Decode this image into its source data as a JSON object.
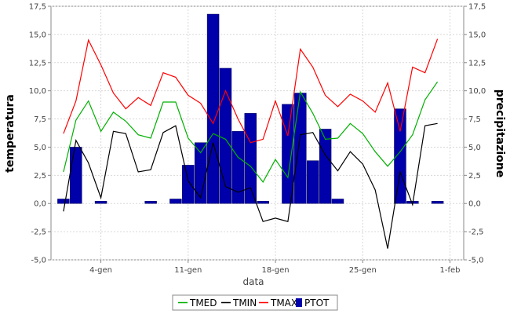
{
  "chart_data": {
    "type": "bar+line",
    "xlabel": "data",
    "ylabel_left": "temperatura",
    "ylabel_right": "precipitazione",
    "ylim": [
      -5.0,
      17.5
    ],
    "y_ticks": [
      "-5,0",
      "-2,5",
      "0,0",
      "2,5",
      "5,0",
      "7,5",
      "10,0",
      "12,5",
      "15,0",
      "17,5"
    ],
    "x_tick_labels": [
      "4-gen",
      "11-gen",
      "18-gen",
      "25-gen",
      "1-feb"
    ],
    "x_tick_days": [
      4,
      11,
      18,
      25,
      32
    ],
    "x_days": [
      1,
      2,
      3,
      4,
      5,
      6,
      7,
      8,
      9,
      10,
      11,
      12,
      13,
      14,
      15,
      16,
      17,
      18,
      19,
      20,
      21,
      22,
      23,
      24,
      25,
      26,
      27,
      28,
      29,
      30,
      31
    ],
    "legend": [
      "TMED",
      "TMIN",
      "TMAX",
      "PTOT"
    ],
    "colors": {
      "TMED": "#00b000",
      "TMIN": "#000000",
      "TMAX": "#ff0000",
      "PTOT": "#0000aa"
    },
    "series": [
      {
        "name": "TMED",
        "type": "line",
        "values": [
          2.8,
          7.4,
          9.1,
          6.4,
          8.1,
          7.3,
          6.1,
          5.8,
          9.0,
          9.0,
          5.8,
          4.5,
          6.2,
          5.7,
          4.1,
          3.3,
          1.9,
          3.9,
          2.3,
          9.9,
          8.0,
          5.7,
          5.8,
          7.1,
          6.2,
          4.6,
          3.3,
          4.6,
          6.1,
          9.2,
          10.8
        ]
      },
      {
        "name": "TMIN",
        "type": "line",
        "values": [
          -0.7,
          5.6,
          3.6,
          0.5,
          6.4,
          6.2,
          2.8,
          3.0,
          6.3,
          6.9,
          2.0,
          0.5,
          5.4,
          1.5,
          1.0,
          1.4,
          -1.6,
          -1.3,
          -1.6,
          6.1,
          6.3,
          4.3,
          2.9,
          4.6,
          3.5,
          1.2,
          -4.0,
          2.8,
          -0.1,
          6.9,
          7.1
        ]
      },
      {
        "name": "TMAX",
        "type": "line",
        "values": [
          6.2,
          9.1,
          14.5,
          12.3,
          9.8,
          8.4,
          9.4,
          8.7,
          11.6,
          11.2,
          9.6,
          8.9,
          7.1,
          10.0,
          7.5,
          5.4,
          5.7,
          9.1,
          6.0,
          13.7,
          12.1,
          9.6,
          8.6,
          9.7,
          9.1,
          8.1,
          10.7,
          6.4,
          12.1,
          11.6,
          14.6
        ]
      },
      {
        "name": "PTOT",
        "type": "bar",
        "values": [
          0.4,
          5.0,
          0.0,
          0.2,
          0.0,
          0.0,
          0.0,
          0.2,
          0.0,
          0.4,
          3.4,
          5.4,
          16.8,
          12.0,
          6.4,
          8.0,
          0.2,
          0.0,
          8.8,
          9.8,
          3.8,
          6.6,
          0.4,
          0.0,
          0.0,
          0.0,
          0.0,
          8.4,
          0.2,
          0.0,
          0.2
        ]
      }
    ]
  }
}
